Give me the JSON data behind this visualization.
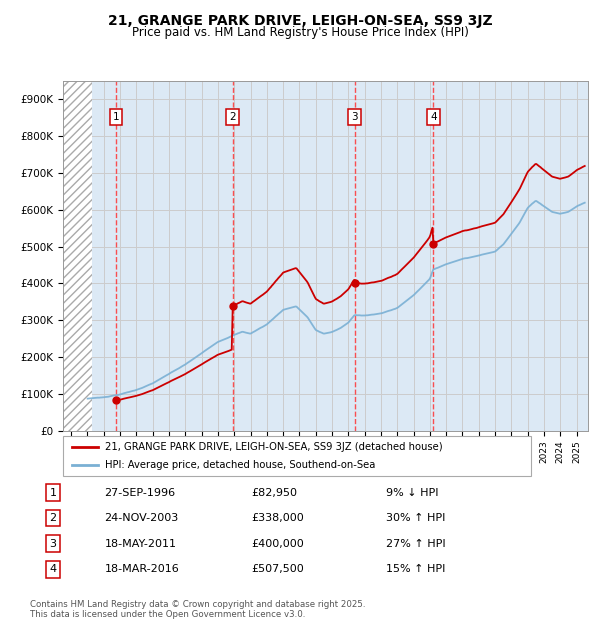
{
  "title": "21, GRANGE PARK DRIVE, LEIGH-ON-SEA, SS9 3JZ",
  "subtitle": "Price paid vs. HM Land Registry's House Price Index (HPI)",
  "ylim": [
    0,
    950000
  ],
  "yticks": [
    0,
    100000,
    200000,
    300000,
    400000,
    500000,
    600000,
    700000,
    800000,
    900000
  ],
  "ytick_labels": [
    "£0",
    "£100K",
    "£200K",
    "£300K",
    "£400K",
    "£500K",
    "£600K",
    "£700K",
    "£800K",
    "£900K"
  ],
  "grid_color": "#cccccc",
  "bg_color": "#dce9f5",
  "hatch_region_end_year": 1995.3,
  "sale_dates": [
    1996.74,
    2003.9,
    2011.38,
    2016.21
  ],
  "sale_prices": [
    82950,
    338000,
    400000,
    507500
  ],
  "sale_labels": [
    "1",
    "2",
    "3",
    "4"
  ],
  "vline_color": "#ff3333",
  "marker_color": "#cc0000",
  "house_line_color": "#cc0000",
  "hpi_line_color": "#7ab0d4",
  "legend_house": "21, GRANGE PARK DRIVE, LEIGH-ON-SEA, SS9 3JZ (detached house)",
  "legend_hpi": "HPI: Average price, detached house, Southend-on-Sea",
  "table_data": [
    [
      "1",
      "27-SEP-1996",
      "£82,950",
      "9% ↓ HPI"
    ],
    [
      "2",
      "24-NOV-2003",
      "£338,000",
      "30% ↑ HPI"
    ],
    [
      "3",
      "18-MAY-2011",
      "£400,000",
      "27% ↑ HPI"
    ],
    [
      "4",
      "18-MAR-2016",
      "£507,500",
      "15% ↑ HPI"
    ]
  ],
  "footnote": "Contains HM Land Registry data © Crown copyright and database right 2025.\nThis data is licensed under the Open Government Licence v3.0.",
  "xlim_start": 1993.5,
  "xlim_end": 2025.7
}
